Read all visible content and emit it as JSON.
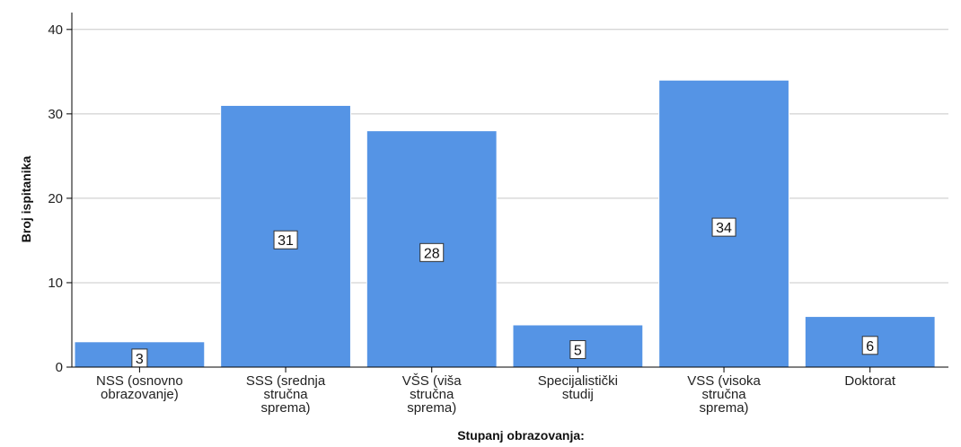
{
  "chart_data": {
    "type": "bar",
    "categories": [
      [
        "NSS (osnovno",
        "obrazovanje)"
      ],
      [
        "SSS (srednja",
        "stručna",
        "sprema)"
      ],
      [
        "VŠS (viša",
        "stručna",
        "sprema)"
      ],
      [
        "Specijalistički",
        "studij"
      ],
      [
        "VSS (visoka",
        "stručna",
        "sprema)"
      ],
      [
        "Doktorat"
      ]
    ],
    "values": [
      3,
      31,
      28,
      5,
      34,
      6
    ],
    "data_labels": [
      "3",
      "31",
      "28",
      "5",
      "34",
      "6"
    ],
    "title": "",
    "xlabel": "Stupanj obrazovanja:",
    "ylabel": "Broj ispitanika",
    "ylim": [
      0,
      42
    ],
    "yticks": [
      0,
      10,
      20,
      30,
      40
    ],
    "grid": true,
    "legend": "none",
    "colors": {
      "bar": "#5594e5",
      "bar_edge": "#ffffff",
      "grid": "#c8c8c8",
      "axis": "#000000"
    }
  }
}
